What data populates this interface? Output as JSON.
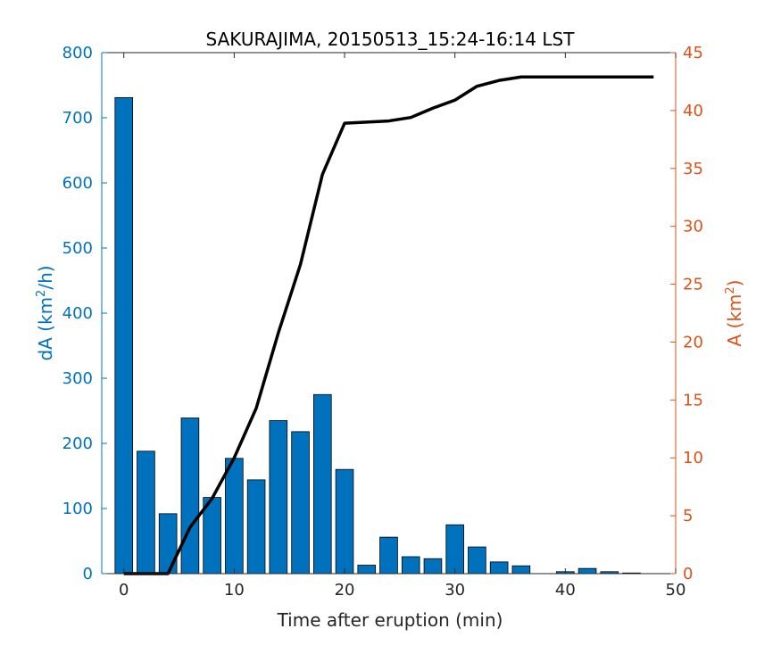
{
  "chart_data": {
    "type": "bar",
    "title": "SAKURAJIMA, 20150513_15:24-16:14 LST",
    "xlabel": "Time after eruption (min)",
    "ylabel_left": "dA (km",
    "ylabel_left_sup": "2",
    "ylabel_left_tail": "/h)",
    "ylabel_right": "A (km",
    "ylabel_right_sup": "2",
    "ylabel_right_tail": ")",
    "xlim": [
      -2,
      50
    ],
    "ylim_left": [
      0,
      800
    ],
    "ylim_right": [
      0,
      45
    ],
    "xticks": [
      0,
      10,
      20,
      30,
      40,
      50
    ],
    "yticks_left": [
      0,
      100,
      200,
      300,
      400,
      500,
      600,
      700,
      800
    ],
    "yticks_right": [
      0,
      5,
      10,
      15,
      20,
      25,
      30,
      35,
      40,
      45
    ],
    "grid": false,
    "colors": {
      "left_axis": "#0072BD",
      "right_axis": "#D95319",
      "bars": "#0072BD",
      "bar_edge": "#000000",
      "line": "#000000"
    },
    "bars": {
      "x": [
        0,
        2,
        4,
        6,
        8,
        10,
        12,
        14,
        16,
        18,
        20,
        22,
        24,
        26,
        28,
        30,
        32,
        34,
        36,
        38,
        40,
        42,
        44,
        46
      ],
      "values": [
        731,
        188,
        92,
        239,
        117,
        177,
        144,
        235,
        218,
        275,
        160,
        13,
        56,
        26,
        23,
        75,
        41,
        18,
        12,
        0,
        3,
        8,
        3,
        1
      ]
    },
    "line": {
      "x": [
        0,
        2,
        4,
        6,
        8,
        10,
        12,
        14,
        16,
        18,
        20,
        22,
        24,
        26,
        28,
        30,
        32,
        34,
        36,
        38,
        40,
        42,
        44,
        46,
        48
      ],
      "values": [
        0,
        0,
        0,
        4,
        6.5,
        10,
        14.3,
        20.8,
        26.7,
        34.5,
        38.9,
        39,
        39.1,
        39.4,
        40.2,
        40.9,
        42.1,
        42.6,
        42.9,
        42.9,
        42.9,
        42.9,
        42.9,
        42.9,
        42.9
      ]
    }
  }
}
